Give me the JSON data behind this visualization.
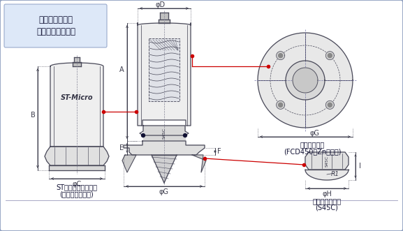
{
  "title": "自穿孔ボルト、\n背面二次注入の例",
  "bg_color": "#dde2f0",
  "border_color": "#8899bb",
  "inner_bg": "#ffffff",
  "dc": "#4a4a5a",
  "dimc": "#3a3a4a",
  "rc": "#cc0000",
  "label_st_micro": "ST-Micro",
  "label_cap1": "STマイクロキャップ",
  "label_cap2": "(アルミ合金鑄物)",
  "label_plate1": "円形プレート",
  "label_plate2": "(FCD450、Znメッキ)",
  "label_nut1": "球面六角ナット",
  "label_nut2": "(S45C)",
  "s45c": "S45C",
  "dim_A": "A",
  "dim_B": "B",
  "dim_phiC": "φC",
  "dim_phiD": "φD",
  "dim_E": "E",
  "dim_F": "F",
  "dim_phiG": "φG",
  "dim_phiH": "φH",
  "dim_I": "I",
  "dim_R1": "R1"
}
